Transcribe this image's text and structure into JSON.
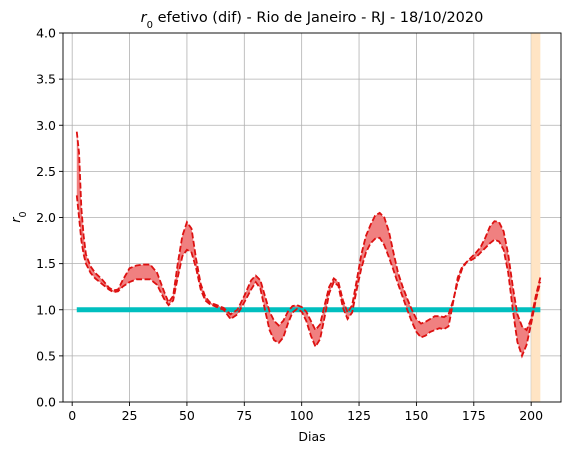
{
  "chart_data": {
    "type": "line",
    "title_prefix": "r",
    "title_subscript": "0",
    "title_rest": " efetivo (dif) - Rio de Janeiro - RJ - 18/10/2020",
    "xlabel": "Dias",
    "ylabel_main": "r",
    "ylabel_sub": "0",
    "xlim": [
      -4,
      213
    ],
    "ylim": [
      0,
      4.0
    ],
    "xticks": [
      0,
      25,
      50,
      75,
      100,
      125,
      150,
      175,
      200
    ],
    "xtick_labels": [
      "0",
      "25",
      "50",
      "75",
      "100",
      "125",
      "150",
      "175",
      "200"
    ],
    "yticks": [
      0,
      0.5,
      1.0,
      1.5,
      2.0,
      2.5,
      3.0,
      3.5,
      4.0
    ],
    "ytick_labels": [
      "0.0",
      "0.5",
      "1.0",
      "1.5",
      "2.0",
      "2.5",
      "3.0",
      "3.5",
      "4.0"
    ],
    "grid": true,
    "colors": {
      "band_fill": "#f08080",
      "bound_line": "#dd1111",
      "reference_line": "#00bfbf",
      "highlight_span": "#ffe4c4"
    },
    "highlight_span": [
      200,
      204
    ],
    "reference": {
      "y": 1.0,
      "x_start": 2,
      "x_end": 204
    },
    "upper_bound": {
      "x": [
        2,
        3,
        4,
        5,
        6,
        8,
        10,
        13,
        16,
        18,
        20,
        22,
        25,
        28,
        31,
        34,
        37,
        40,
        42,
        44,
        46,
        48,
        50,
        52,
        54,
        56,
        58,
        60,
        63,
        66,
        69,
        72,
        75,
        78,
        80,
        82,
        84,
        86,
        88,
        90,
        92,
        94,
        96,
        98,
        100,
        102,
        104,
        106,
        108,
        110,
        112,
        114,
        116,
        118,
        120,
        122,
        124,
        126,
        128,
        130,
        132,
        134,
        136,
        138,
        140,
        142,
        144,
        146,
        148,
        150,
        152,
        154,
        156,
        158,
        160,
        162,
        164,
        166,
        168,
        170,
        172,
        174,
        176,
        178,
        180,
        182,
        184,
        186,
        188,
        190,
        192,
        194,
        196,
        198,
        200,
        202,
        204
      ],
      "y": [
        2.93,
        2.7,
        2.1,
        1.8,
        1.6,
        1.47,
        1.4,
        1.33,
        1.24,
        1.21,
        1.22,
        1.32,
        1.45,
        1.48,
        1.49,
        1.49,
        1.4,
        1.2,
        1.08,
        1.15,
        1.5,
        1.8,
        1.95,
        1.88,
        1.55,
        1.28,
        1.14,
        1.08,
        1.05,
        1.02,
        0.95,
        1.0,
        1.15,
        1.32,
        1.37,
        1.32,
        1.15,
        0.98,
        0.88,
        0.83,
        0.88,
        0.98,
        1.04,
        1.05,
        1.03,
        0.98,
        0.88,
        0.78,
        0.84,
        1.05,
        1.25,
        1.34,
        1.3,
        1.1,
        0.97,
        1.05,
        1.32,
        1.6,
        1.8,
        1.92,
        2.02,
        2.05,
        2.0,
        1.85,
        1.62,
        1.4,
        1.25,
        1.12,
        1.0,
        0.9,
        0.85,
        0.87,
        0.9,
        0.93,
        0.93,
        0.92,
        0.95,
        1.1,
        1.3,
        1.45,
        1.52,
        1.57,
        1.62,
        1.68,
        1.78,
        1.9,
        1.96,
        1.95,
        1.85,
        1.6,
        1.25,
        0.95,
        0.82,
        0.78,
        0.9,
        1.15,
        1.35
      ]
    },
    "lower_bound": {
      "x": [
        2,
        3,
        4,
        5,
        6,
        8,
        10,
        13,
        16,
        18,
        20,
        22,
        25,
        28,
        31,
        34,
        37,
        40,
        42,
        44,
        46,
        48,
        50,
        52,
        54,
        56,
        58,
        60,
        63,
        66,
        69,
        72,
        75,
        78,
        80,
        82,
        84,
        86,
        88,
        90,
        92,
        94,
        96,
        98,
        100,
        102,
        104,
        106,
        108,
        110,
        112,
        114,
        116,
        118,
        120,
        122,
        124,
        126,
        128,
        130,
        132,
        134,
        136,
        138,
        140,
        142,
        144,
        146,
        148,
        150,
        152,
        154,
        156,
        158,
        160,
        162,
        164,
        166,
        168,
        170,
        172,
        174,
        176,
        178,
        180,
        182,
        184,
        186,
        188,
        190,
        192,
        194,
        196,
        198,
        200,
        202,
        204
      ],
      "y": [
        2.24,
        2.0,
        1.75,
        1.6,
        1.5,
        1.4,
        1.34,
        1.28,
        1.22,
        1.19,
        1.2,
        1.25,
        1.3,
        1.33,
        1.33,
        1.33,
        1.27,
        1.12,
        1.05,
        1.1,
        1.35,
        1.58,
        1.65,
        1.62,
        1.45,
        1.22,
        1.1,
        1.06,
        1.03,
        1.0,
        0.9,
        0.95,
        1.08,
        1.22,
        1.3,
        1.23,
        1.0,
        0.78,
        0.67,
        0.64,
        0.7,
        0.85,
        0.97,
        1.01,
        0.98,
        0.88,
        0.72,
        0.6,
        0.68,
        0.92,
        1.18,
        1.3,
        1.26,
        1.02,
        0.9,
        0.97,
        1.22,
        1.45,
        1.62,
        1.72,
        1.77,
        1.78,
        1.7,
        1.57,
        1.43,
        1.28,
        1.14,
        1.0,
        0.87,
        0.76,
        0.7,
        0.72,
        0.76,
        0.78,
        0.8,
        0.79,
        0.82,
        1.08,
        1.35,
        1.47,
        1.52,
        1.54,
        1.57,
        1.62,
        1.67,
        1.72,
        1.76,
        1.74,
        1.65,
        1.4,
        1.0,
        0.65,
        0.5,
        0.62,
        0.85,
        1.1,
        1.3
      ]
    }
  }
}
